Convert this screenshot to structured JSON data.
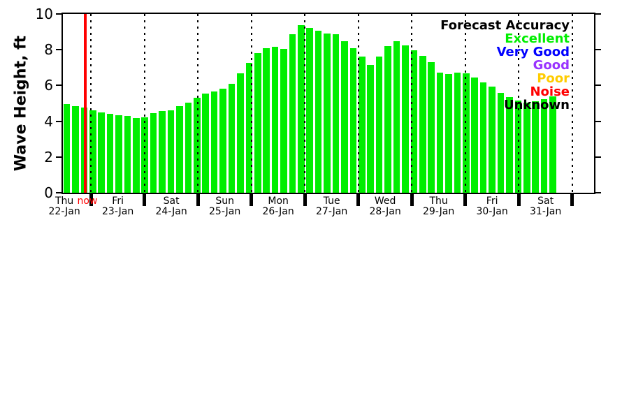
{
  "chart_data": {
    "type": "bar",
    "title": "",
    "ylabel": "Wave Height, ft",
    "ylim": [
      0,
      10
    ],
    "yticks": [
      0,
      2,
      4,
      6,
      8,
      10
    ],
    "grid": "vertical dotted lines at each day boundary; plot framed by full box with outward ticks left/right; thick black day ticks below x-axis",
    "legend_position": "top-right inside plot",
    "bar_color": "#00ee00",
    "days": [
      {
        "name": "Thu",
        "date": "22-Jan"
      },
      {
        "name": "Fri",
        "date": "23-Jan"
      },
      {
        "name": "Sat",
        "date": "24-Jan"
      },
      {
        "name": "Sun",
        "date": "25-Jan"
      },
      {
        "name": "Mon",
        "date": "26-Jan"
      },
      {
        "name": "Tue",
        "date": "27-Jan"
      },
      {
        "name": "Wed",
        "date": "28-Jan"
      },
      {
        "name": "Thu",
        "date": "29-Jan"
      },
      {
        "name": "Fri",
        "date": "30-Jan"
      },
      {
        "name": "Sat",
        "date": "31-Jan"
      }
    ],
    "values": [
      4.95,
      4.85,
      4.78,
      4.6,
      4.48,
      4.4,
      4.35,
      4.28,
      4.18,
      4.22,
      4.44,
      4.56,
      4.62,
      4.84,
      5.05,
      5.3,
      5.54,
      5.67,
      5.83,
      6.11,
      6.67,
      7.25,
      7.8,
      8.1,
      8.18,
      8.05,
      8.85,
      9.38,
      9.22,
      9.05,
      8.92,
      8.88,
      8.48,
      8.1,
      7.61,
      7.15,
      7.6,
      8.22,
      8.48,
      8.26,
      7.98,
      7.66,
      7.3,
      6.73,
      6.65,
      6.72,
      6.67,
      6.43,
      6.16,
      5.93,
      5.58,
      5.35,
      5.15,
      5.03,
      5.1,
      5.25,
      5.38
    ],
    "now": {
      "label": "now",
      "color": "#ff0000"
    },
    "legend": {
      "title": "Forecast Accuracy",
      "entries": [
        {
          "label": "Excellent",
          "color": "#00ee00"
        },
        {
          "label": "Very Good",
          "color": "#0000ff"
        },
        {
          "label": "Good",
          "color": "#9933ff"
        },
        {
          "label": "Poor",
          "color": "#ffcc00"
        },
        {
          "label": "Noise",
          "color": "#ff0000"
        },
        {
          "label": "Unknown",
          "color": "#000000"
        }
      ]
    }
  }
}
